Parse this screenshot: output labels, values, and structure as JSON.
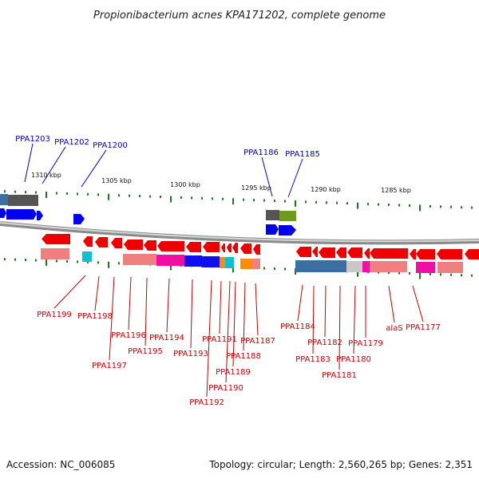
{
  "title": "Propionibacterium acnes KPA171202, complete genome",
  "footer": {
    "accession": "Accession: NC_006085",
    "summary": "Topology: circular; Length: 2,560,265 bp; Genes: 2,351"
  },
  "colors": {
    "top_label": "#0000cc",
    "bottom_label": "#cc0000",
    "forward_gene": "#0000ee",
    "reverse_gene": "#ee0000",
    "tick": "#1a7a1a",
    "backbone": "#9a9a9a"
  },
  "kbp_labels": [
    "1310 kbp",
    "1305 kbp",
    "1300 kbp",
    "1295 kbp",
    "1290 kbp",
    "1285 kbp"
  ],
  "top_labels": [
    "PPA1203",
    "PPA1202",
    "PPA1200",
    "PPA1186",
    "PPA1185"
  ],
  "bottom_labels": [
    "PPA1199",
    "PPA1198",
    "PPA1197",
    "PPA1196",
    "PPA1195",
    "PPA1194",
    "PPA1193",
    "PPA1192",
    "PPA1191",
    "PPA1190",
    "PPA1189",
    "PPA1188",
    "PPA1187",
    "PPA1184",
    "PPA1183",
    "PPA1182",
    "PPA1181",
    "PPA1180",
    "PPA1179",
    "alaS",
    "PPA1177"
  ]
}
